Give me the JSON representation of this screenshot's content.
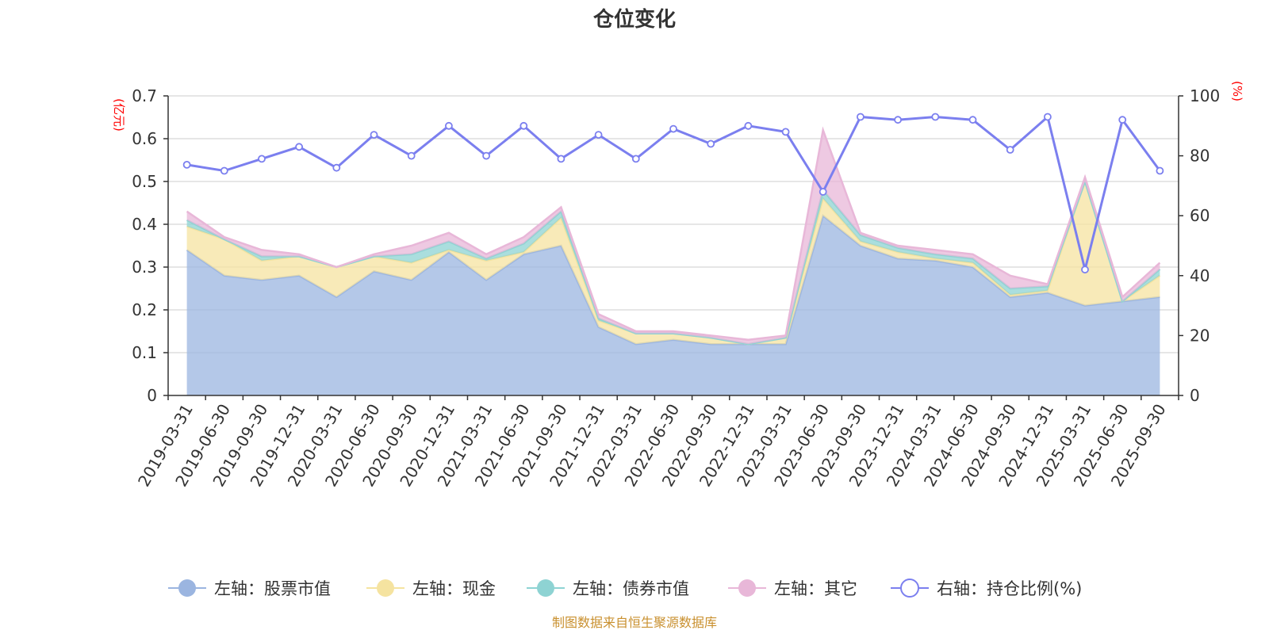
{
  "chart_data": {
    "type": "area",
    "title": "仓位变化",
    "categories": [
      "2019-03-31",
      "2019-06-30",
      "2019-09-30",
      "2019-12-31",
      "2020-03-31",
      "2020-06-30",
      "2020-09-30",
      "2020-12-31",
      "2021-03-31",
      "2021-06-30",
      "2021-09-30",
      "2021-12-31",
      "2022-03-31",
      "2022-06-30",
      "2022-09-30",
      "2022-12-31",
      "2023-03-31",
      "2023-06-30",
      "2023-09-30",
      "2023-12-31",
      "2024-03-31",
      "2024-06-30",
      "2024-09-30",
      "2024-12-31",
      "2025-03-31",
      "2025-06-30",
      "2025-09-30"
    ],
    "left_axis": {
      "label": "(亿元)",
      "ylim": [
        0,
        0.7
      ],
      "ticks": [
        "0",
        "0.1",
        "0.2",
        "0.3",
        "0.4",
        "0.5",
        "0.6",
        "0.7"
      ],
      "tick_values": [
        0,
        0.1,
        0.2,
        0.3,
        0.4,
        0.5,
        0.6,
        0.7
      ]
    },
    "right_axis": {
      "label": "(%)",
      "ylim": [
        0,
        100
      ],
      "ticks": [
        "0",
        "20",
        "40",
        "60",
        "80",
        "100"
      ],
      "tick_values": [
        0,
        20,
        40,
        60,
        80,
        100
      ]
    },
    "series": [
      {
        "name": "左轴：股票市值",
        "axis": "left",
        "stacked": true,
        "color": "#9bb5e0",
        "values": [
          0.34,
          0.28,
          0.27,
          0.28,
          0.23,
          0.29,
          0.27,
          0.335,
          0.27,
          0.33,
          0.35,
          0.16,
          0.12,
          0.13,
          0.12,
          0.12,
          0.12,
          0.42,
          0.35,
          0.32,
          0.315,
          0.3,
          0.23,
          0.24,
          0.21,
          0.22,
          0.23
        ]
      },
      {
        "name": "左轴：现金",
        "axis": "left",
        "stacked": true,
        "color": "#f5e3a0",
        "values": [
          0.055,
          0.085,
          0.045,
          0.045,
          0.07,
          0.035,
          0.04,
          0.005,
          0.045,
          0.005,
          0.065,
          0.015,
          0.025,
          0.015,
          0.015,
          0.0,
          0.015,
          0.04,
          0.01,
          0.015,
          0.005,
          0.01,
          0.005,
          0.005,
          0.29,
          0.0,
          0.05
        ]
      },
      {
        "name": "左轴：债券市值",
        "axis": "left",
        "stacked": true,
        "color": "#8ed3d3",
        "values": [
          0.015,
          0.0,
          0.01,
          0.0,
          0.0,
          0.0,
          0.02,
          0.02,
          0.005,
          0.02,
          0.015,
          0.005,
          0.0,
          0.0,
          0.0,
          0.0,
          0.0,
          0.02,
          0.015,
          0.01,
          0.01,
          0.01,
          0.015,
          0.01,
          0.0,
          0.0,
          0.015
        ]
      },
      {
        "name": "左轴：其它",
        "axis": "left",
        "stacked": true,
        "color": "#e8b7d8",
        "values": [
          0.02,
          0.005,
          0.015,
          0.005,
          0.0,
          0.005,
          0.02,
          0.02,
          0.01,
          0.015,
          0.01,
          0.01,
          0.005,
          0.005,
          0.005,
          0.01,
          0.005,
          0.14,
          0.005,
          0.005,
          0.01,
          0.01,
          0.03,
          0.005,
          0.01,
          0.01,
          0.015
        ]
      },
      {
        "name": "右轴：持仓比例(%)",
        "axis": "right",
        "type": "line",
        "color": "#7b7fef",
        "values": [
          77,
          75,
          79,
          83,
          76,
          87,
          80,
          90,
          80,
          90,
          79,
          87,
          79,
          89,
          84,
          90,
          88,
          68,
          93,
          92,
          93,
          92,
          82,
          93,
          42,
          92,
          75
        ]
      }
    ],
    "legend_position": "bottom",
    "source_note": "制图数据来自恒生聚源数据库"
  }
}
